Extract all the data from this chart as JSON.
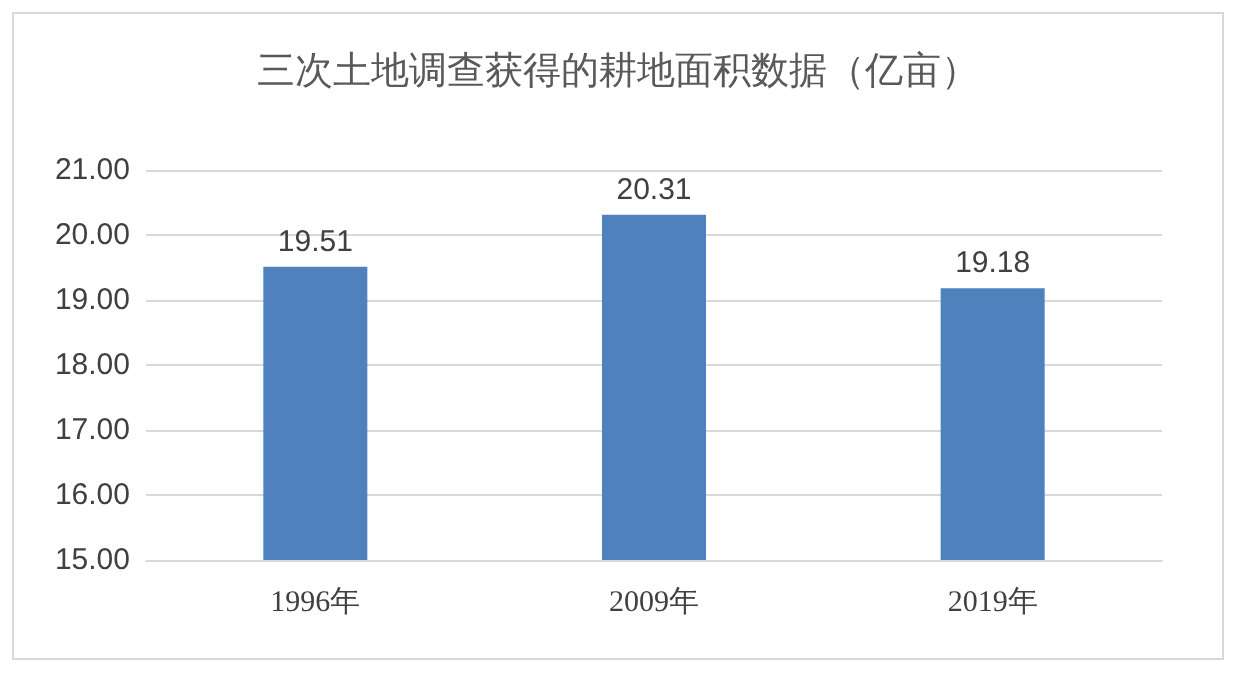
{
  "chart_data": {
    "type": "bar",
    "title": "三次土地调查获得的耕地面积数据（亿亩）",
    "categories": [
      "1996年",
      "2009年",
      "2019年"
    ],
    "values": [
      19.51,
      20.31,
      19.18
    ],
    "color": "#4f81bd",
    "ylim": [
      15,
      21
    ],
    "yticks": [
      {
        "value": 15,
        "label": "15.00"
      },
      {
        "value": 16,
        "label": "16.00"
      },
      {
        "value": 17,
        "label": "17.00"
      },
      {
        "value": 18,
        "label": "18.00"
      },
      {
        "value": 19,
        "label": "19.00"
      },
      {
        "value": 20,
        "label": "20.00"
      },
      {
        "value": 21,
        "label": "21.00"
      }
    ],
    "grid": "y",
    "data_labels": true
  }
}
